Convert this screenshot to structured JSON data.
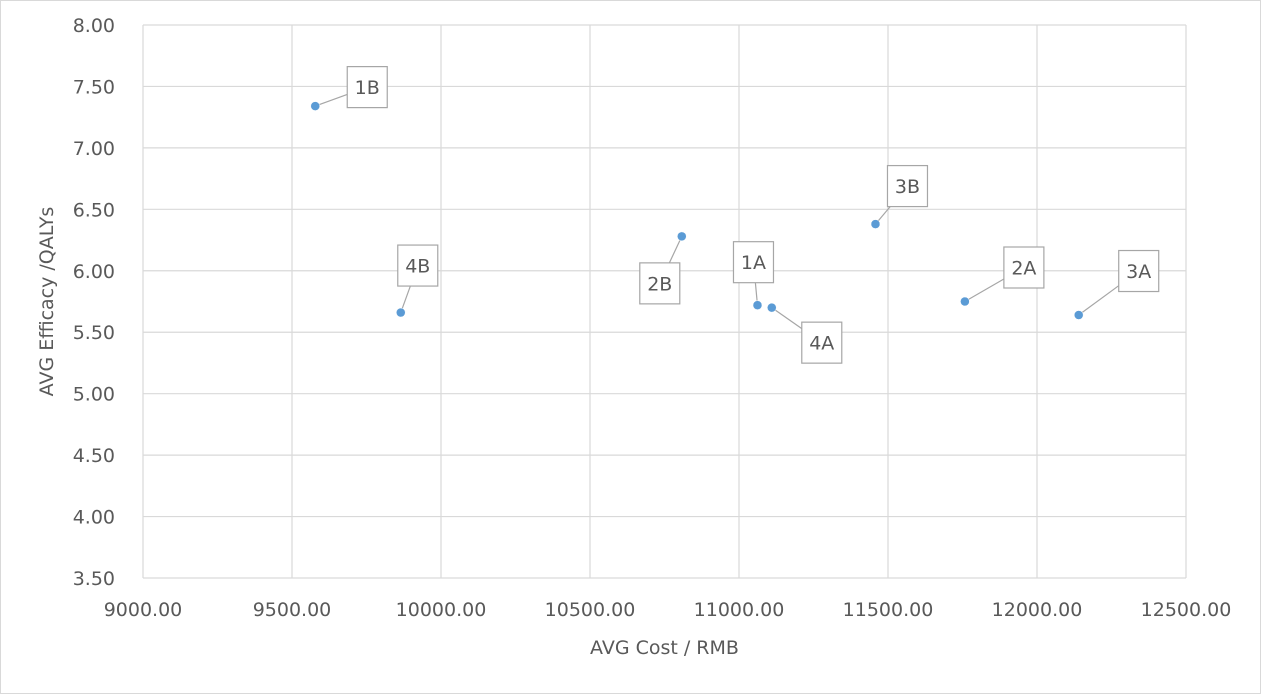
{
  "chart_data": {
    "type": "scatter",
    "title": "",
    "xlabel": "AVG Cost / RMB",
    "ylabel": "AVG Efficacy /QALYs",
    "xlim": [
      9000,
      12500
    ],
    "ylim": [
      3.5,
      8.0
    ],
    "x_ticks": [
      "9000.00",
      "9500.00",
      "10000.00",
      "10500.00",
      "11000.00",
      "11500.00",
      "12000.00",
      "12500.00"
    ],
    "y_ticks": [
      "3.50",
      "4.00",
      "4.50",
      "5.00",
      "5.50",
      "6.00",
      "6.50",
      "7.00",
      "7.50",
      "8.00"
    ],
    "grid": true,
    "legend": "none",
    "marker_color": "#5b9bd5",
    "points": [
      {
        "label": "1B",
        "x": 9578,
        "y": 7.34
      },
      {
        "label": "4B",
        "x": 9865,
        "y": 5.66
      },
      {
        "label": "2B",
        "x": 10808,
        "y": 6.28
      },
      {
        "label": "1A",
        "x": 11062,
        "y": 5.72
      },
      {
        "label": "4A",
        "x": 11110,
        "y": 5.7
      },
      {
        "label": "3B",
        "x": 11458,
        "y": 6.38
      },
      {
        "label": "2A",
        "x": 11758,
        "y": 5.75
      },
      {
        "label": "3A",
        "x": 12140,
        "y": 5.64
      }
    ]
  }
}
